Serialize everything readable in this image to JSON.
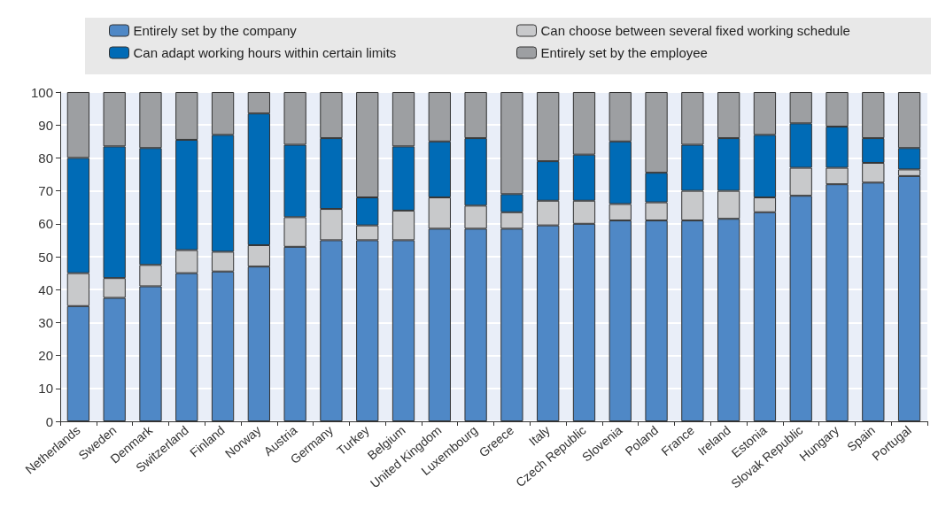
{
  "chart_data": {
    "type": "bar",
    "stacked": true,
    "categories": [
      "Netherlands",
      "Sweden",
      "Denmark",
      "Switzerland",
      "Finland",
      "Norway",
      "Austria",
      "Germany",
      "Turkey",
      "Belgium",
      "United Kingdom",
      "Luxembourg",
      "Greece",
      "Italy",
      "Czech Republic",
      "Slovenia",
      "Poland",
      "France",
      "Ireland",
      "Estonia",
      "Slovak Republic",
      "Hungary",
      "Spain",
      "Portugal"
    ],
    "series": [
      {
        "name": "Entirely set by the company",
        "color": "#4f88c6",
        "values": [
          35,
          37.5,
          41,
          45,
          45.5,
          47,
          53,
          55,
          55,
          55,
          58.5,
          58.5,
          58.5,
          59.5,
          60,
          61,
          61,
          61,
          61.5,
          63.5,
          68.5,
          72,
          72.5,
          74.5
        ]
      },
      {
        "name": "Can choose between several fixed working schedule",
        "color": "#c8c9cb",
        "values": [
          10,
          6,
          6.5,
          7,
          6,
          6.5,
          9,
          9.5,
          4.5,
          9,
          9.5,
          7,
          5,
          7.5,
          7,
          5,
          5.5,
          9,
          8.5,
          4.5,
          8.5,
          5,
          6,
          2
        ]
      },
      {
        "name": "Can adapt working hours within certain limits",
        "color": "#006bb6",
        "values": [
          35,
          40,
          35.5,
          33.5,
          35.5,
          40,
          22,
          21.5,
          8.5,
          19.5,
          17,
          20.5,
          5.5,
          12,
          14,
          19,
          9,
          14,
          16,
          19,
          13.5,
          12.5,
          7.5,
          6.5
        ]
      },
      {
        "name": "Entirely set by the employee",
        "color": "#9d9fa2",
        "values": [
          20,
          16.5,
          17,
          14.5,
          13,
          6.5,
          16,
          14,
          32,
          16.5,
          15,
          14,
          31,
          21,
          19,
          15,
          24.5,
          16,
          14,
          13,
          9.5,
          10.5,
          14,
          17
        ]
      }
    ],
    "ylim": [
      0,
      100
    ],
    "yticks": [
      0,
      10,
      20,
      30,
      40,
      50,
      60,
      70,
      80,
      90,
      100
    ],
    "grid": "y",
    "legend": "top"
  }
}
